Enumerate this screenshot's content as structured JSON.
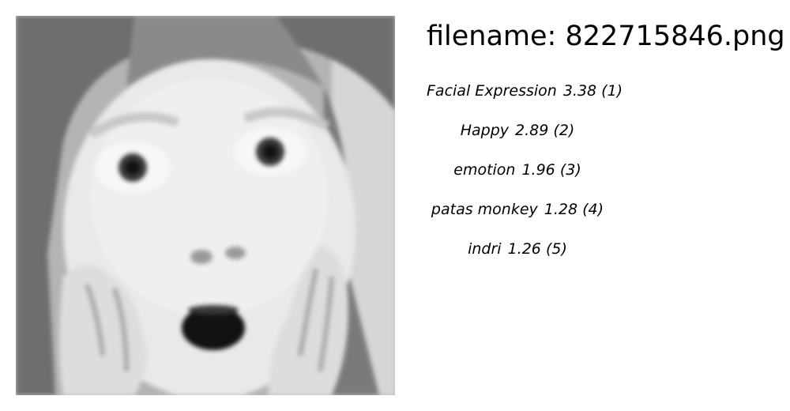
{
  "header": {
    "filename_text": "filename: 822715846.png"
  },
  "image": {
    "subject": "grayscale photo of a child with a surprised face, hands on cheeks"
  },
  "labels": [
    {
      "name": "Facial Expression",
      "score": "3.38",
      "rank": "(1)"
    },
    {
      "name": "Happy",
      "score": "2.89",
      "rank": "(2)"
    },
    {
      "name": "emotion",
      "score": "1.96",
      "rank": "(3)"
    },
    {
      "name": "patas monkey",
      "score": "1.28",
      "rank": "(4)"
    },
    {
      "name": "indri",
      "score": "1.26",
      "rank": "(5)"
    }
  ]
}
